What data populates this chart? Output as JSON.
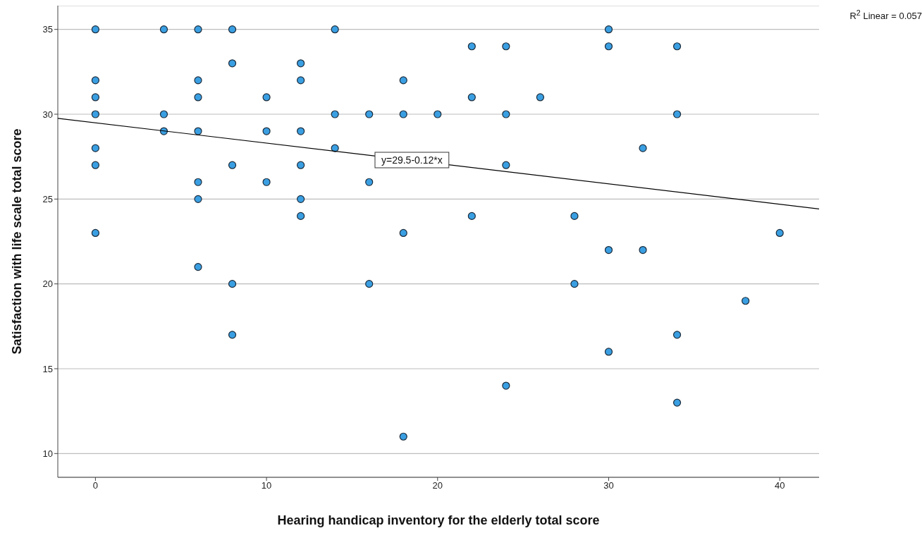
{
  "chart_data": {
    "type": "scatter",
    "xlabel": "Hearing handicap inventory for the elderly total score",
    "ylabel": "Satisfaction with life scale total score",
    "xlim": [
      -2.2,
      42.3
    ],
    "xticks": [
      0,
      10,
      20,
      30,
      40
    ],
    "ylim": [
      8.6,
      36.4
    ],
    "yticks": [
      10,
      15,
      20,
      25,
      30,
      35
    ],
    "grid": "y",
    "marker": "circle",
    "series": [
      {
        "color": "#3a9fe2",
        "x": [
          0,
          0,
          0,
          0,
          0,
          0,
          0,
          4,
          4,
          4,
          6,
          6,
          6,
          6,
          6,
          6,
          6,
          8,
          8,
          8,
          8,
          8,
          10,
          10,
          10,
          12,
          12,
          12,
          12,
          12,
          12,
          14,
          14,
          14,
          16,
          16,
          16,
          18,
          18,
          18,
          18,
          20,
          22,
          22,
          22,
          24,
          24,
          24,
          24,
          26,
          28,
          28,
          30,
          30,
          30,
          30,
          32,
          32,
          34,
          34,
          34,
          34,
          38,
          40
        ],
        "values": [
          35,
          32,
          31,
          30,
          28,
          27,
          23,
          35,
          30,
          29,
          35,
          32,
          31,
          29,
          26,
          25,
          21,
          35,
          33,
          27,
          20,
          17,
          31,
          29,
          26,
          33,
          32,
          29,
          27,
          25,
          24,
          35,
          30,
          28,
          30,
          26,
          20,
          32,
          30,
          23,
          11,
          30,
          34,
          31,
          24,
          34,
          30,
          27,
          14,
          31,
          24,
          20,
          35,
          34,
          22,
          16,
          28,
          22,
          34,
          30,
          17,
          13,
          19,
          23
        ]
      },
      {
        "type": "line",
        "marker": "none",
        "color": "#000000",
        "x": [
          -2.2,
          42.3
        ],
        "values": [
          29.76,
          24.42
        ]
      }
    ],
    "annotations": [
      {
        "text": "y=29.5-0.12*x",
        "x": 18.5,
        "y": 27.3
      },
      "R$^{2}$ Linear = 0.057"
    ]
  }
}
